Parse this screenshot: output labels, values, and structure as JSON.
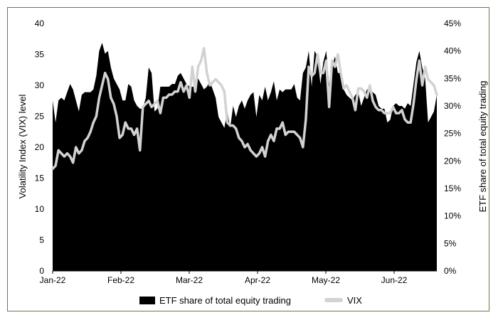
{
  "chart_data": {
    "type": "area",
    "x_labels": [
      "Jan-22",
      "Feb-22",
      "Mar-22",
      "Apr-22",
      "May-22",
      "Jun-22"
    ],
    "ylabel_left": "Volatility Index (VIX) level",
    "ylabel_right": "ETF share of total equity trading",
    "ylim_left": [
      0,
      40
    ],
    "ylim_right": [
      0,
      45
    ],
    "left_ticks": [
      "0",
      "5",
      "10",
      "15",
      "20",
      "25",
      "30",
      "35",
      "40"
    ],
    "right_ticks": [
      "0%",
      "5%",
      "10%",
      "15%",
      "20%",
      "25%",
      "30%",
      "35%",
      "40%",
      "45%"
    ],
    "grid": false,
    "legend_position": "bottom",
    "series": [
      {
        "name": "ETF share of total equity trading",
        "kind": "area",
        "axis": "right",
        "color": "#000000",
        "values": [
          31,
          27,
          31,
          31.5,
          31,
          32.5,
          34,
          33,
          31,
          29,
          32,
          32.5,
          32.5,
          32.5,
          33,
          35.5,
          40,
          41.5,
          39.5,
          40,
          37,
          35,
          34,
          33,
          31,
          31,
          34,
          33.5,
          31,
          30,
          29.5,
          29.5,
          31.5,
          37,
          36,
          29,
          29.5,
          33.5,
          33.5,
          33.5,
          33.5,
          34,
          34,
          35.5,
          36,
          35,
          34,
          33.5,
          33.5,
          33.5,
          35,
          34,
          33,
          33.5,
          34.5,
          33,
          31.5,
          28,
          27,
          26,
          29,
          26,
          30,
          28,
          30,
          31,
          29.5,
          31,
          32,
          32.5,
          28,
          32,
          31,
          33.5,
          31,
          32.5,
          34.5,
          31,
          33,
          32.5,
          33,
          33,
          33,
          34,
          31.5,
          31,
          36,
          37,
          40,
          33.5,
          40,
          39,
          34,
          38,
          40,
          34,
          37,
          39,
          36,
          36,
          33,
          32,
          31.5,
          31,
          32,
          32.5,
          30,
          31.5,
          33,
          33,
          32.5,
          32,
          30,
          29.5,
          29.5,
          27,
          27.5,
          30,
          30.5,
          30,
          30,
          29.5,
          30.5,
          30,
          34,
          38,
          40,
          37,
          35,
          27,
          28,
          29,
          32
        ]
      },
      {
        "name": "VIX",
        "kind": "line",
        "axis": "left",
        "color": "#d2d2d2",
        "values": [
          16.5,
          17,
          19.5,
          19,
          18.5,
          19,
          18.5,
          17.5,
          20,
          19,
          19.5,
          21,
          21.5,
          22.5,
          24,
          25,
          28,
          30,
          32,
          31,
          28,
          27,
          25,
          21.5,
          22,
          24,
          23,
          23,
          22,
          23,
          19.5,
          26.5,
          27,
          27.5,
          26.5,
          27,
          27.5,
          25.5,
          28,
          28,
          28.5,
          28.5,
          29,
          29,
          30.5,
          29,
          30,
          28,
          33,
          29,
          33,
          34,
          36,
          32,
          30,
          30.5,
          31,
          30.5,
          30,
          29,
          24,
          23.5,
          23.5,
          23,
          21.5,
          21,
          20,
          20.5,
          19.5,
          19,
          18.5,
          19,
          20,
          18.5,
          21,
          22,
          21,
          23,
          23,
          24,
          22,
          22.5,
          22.5,
          22.5,
          22,
          21.5,
          20,
          24.5,
          33,
          31.5,
          32,
          35,
          32,
          32,
          34,
          26.5,
          34,
          33,
          35,
          32,
          29.5,
          30,
          29,
          28,
          26,
          29.5,
          29.5,
          29,
          28,
          30,
          27.5,
          26.5,
          26,
          26,
          25.5,
          25.5,
          25.5,
          26.5,
          25.5,
          25.5,
          26,
          24.5,
          24,
          24,
          27,
          31,
          34,
          30,
          33,
          31,
          30.5,
          30,
          28.5
        ]
      }
    ]
  }
}
